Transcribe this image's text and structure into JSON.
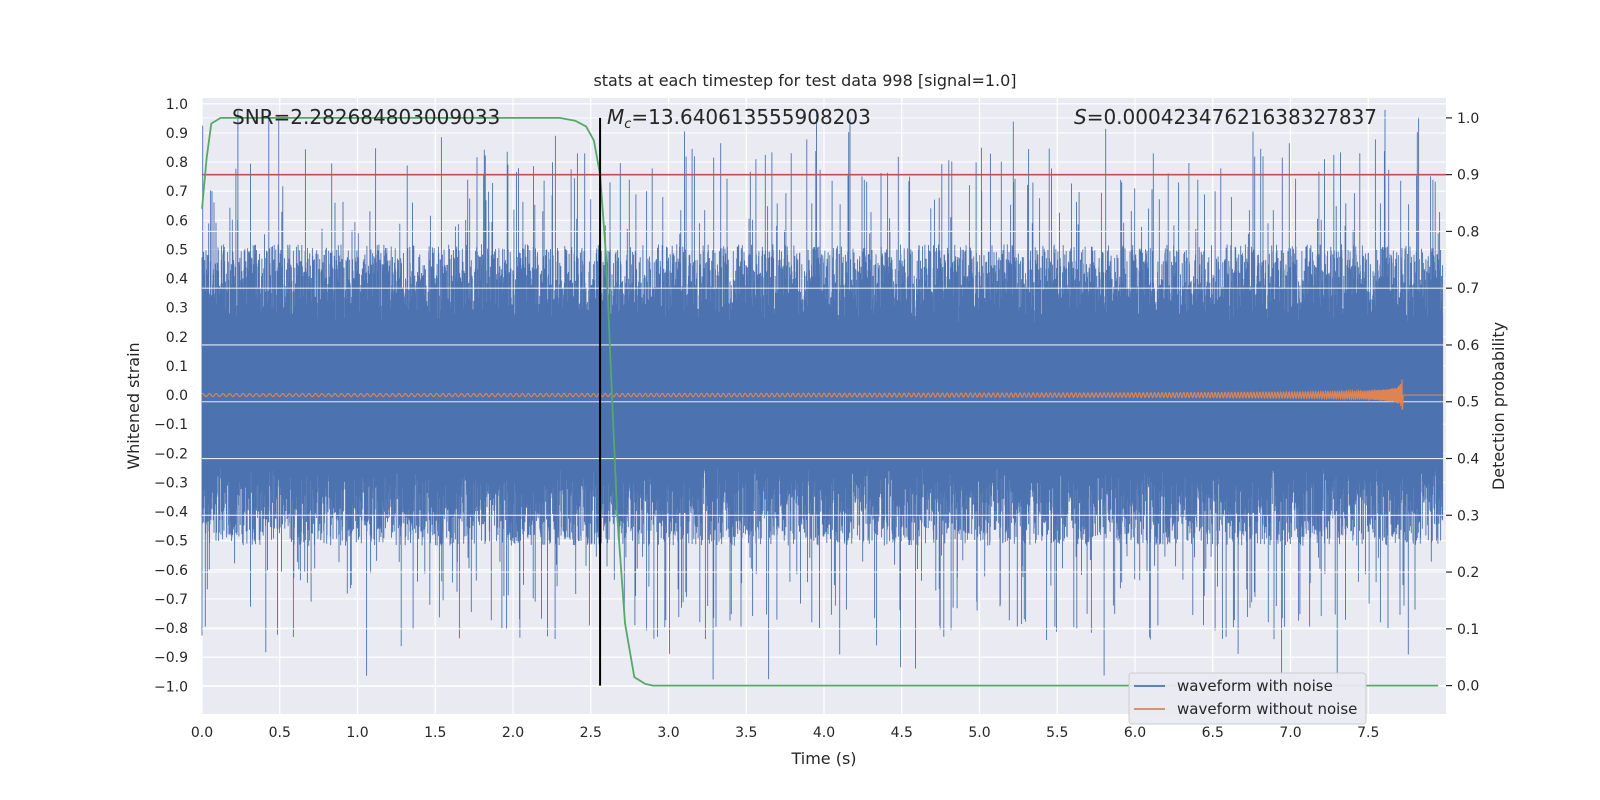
{
  "chart_data": {
    "type": "line",
    "title": "stats at each timestep for test data 998 [signal=1.0]",
    "xlabel": "Time (s)",
    "ylabel": "Whitened strain",
    "y2label": "Detection probability",
    "xlim": [
      0.0,
      8.0
    ],
    "ylim": [
      -1.095,
      1.02
    ],
    "y2lim": [
      -0.05,
      1.035
    ],
    "x_ticks": [
      0.0,
      0.5,
      1.0,
      1.5,
      2.0,
      2.5,
      3.0,
      3.5,
      4.0,
      4.5,
      5.0,
      5.5,
      6.0,
      6.5,
      7.0,
      7.5
    ],
    "x_tick_labels": [
      "0.0",
      "0.5",
      "1.0",
      "1.5",
      "2.0",
      "2.5",
      "3.0",
      "3.5",
      "4.0",
      "4.5",
      "5.0",
      "5.5",
      "6.0",
      "6.5",
      "7.0",
      "7.5"
    ],
    "y_ticks": [
      1.0,
      0.9,
      0.8,
      0.7,
      0.6,
      0.5,
      0.4,
      0.3,
      0.2,
      0.1,
      0.0,
      -0.1,
      -0.2,
      -0.3,
      -0.4,
      -0.5,
      -0.6,
      -0.7,
      -0.8,
      -0.9,
      -1.0
    ],
    "y_tick_labels": [
      "1.0",
      "0.9",
      "0.8",
      "0.7",
      "0.6",
      "0.5",
      "0.4",
      "0.3",
      "0.2",
      "0.1",
      "0.0",
      "−0.1",
      "−0.2",
      "−0.3",
      "−0.4",
      "−0.5",
      "−0.6",
      "−0.7",
      "−0.8",
      "−0.9",
      "−1.0"
    ],
    "y2_ticks": [
      1.0,
      0.9,
      0.8,
      0.7,
      0.6,
      0.5,
      0.4,
      0.3,
      0.2,
      0.1,
      0.0
    ],
    "y2_tick_labels": [
      "1.0",
      "0.9",
      "0.8",
      "0.7",
      "0.6",
      "0.5",
      "0.4",
      "0.3",
      "0.2",
      "0.1",
      "0.0"
    ],
    "annotations": {
      "snr": "SNR=2.282684803009033",
      "mc_symbol": "M",
      "mc_sub": "c",
      "mc_value": "=13.640613555908203",
      "s_symbol": "S",
      "s_value": "=0.00042347621638327837"
    },
    "threshold": 0.9,
    "detection_time": 2.56,
    "merger_time": 7.7,
    "series": [
      {
        "name": "waveform with noise",
        "color": "#4c72b0",
        "envelope_typical": 0.45,
        "envelope_max": 1.0
      },
      {
        "name": "waveform without noise",
        "color": "#dd8452",
        "amplitude_start": 0.005,
        "amplitude_peak": 0.14,
        "end_time": 7.72
      },
      {
        "name": "detection probability",
        "color": "#55a868",
        "points": [
          [
            0.0,
            0.84
          ],
          [
            0.03,
            0.93
          ],
          [
            0.06,
            0.99
          ],
          [
            0.12,
            1.0
          ],
          [
            2.3,
            1.0
          ],
          [
            2.4,
            0.995
          ],
          [
            2.47,
            0.985
          ],
          [
            2.52,
            0.96
          ],
          [
            2.56,
            0.9
          ],
          [
            2.6,
            0.75
          ],
          [
            2.63,
            0.55
          ],
          [
            2.67,
            0.3
          ],
          [
            2.72,
            0.11
          ],
          [
            2.78,
            0.015
          ],
          [
            2.85,
            0.003
          ],
          [
            2.9,
            0.0
          ],
          [
            7.95,
            0.0
          ]
        ]
      },
      {
        "name": "threshold",
        "color": "#c44e52"
      }
    ],
    "legend": {
      "position": "lower-right",
      "entries": [
        "waveform with noise",
        "waveform without noise"
      ]
    }
  }
}
